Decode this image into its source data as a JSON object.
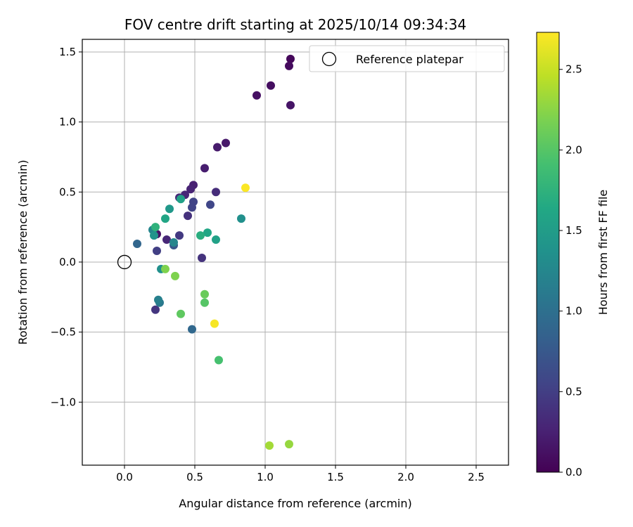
{
  "chart_data": {
    "type": "scatter",
    "title": "FOV centre drift starting at 2025/10/14 09:34:34",
    "xlabel": "Angular distance from reference (arcmin)",
    "ylabel": "Rotation from reference (arcmin)",
    "colorbar_label": "Hours from first FF file",
    "xlim": [
      -0.3,
      2.73
    ],
    "ylim": [
      -1.45,
      1.59
    ],
    "clim": [
      0.0,
      2.73
    ],
    "xticks": [
      0.0,
      0.5,
      1.0,
      1.5,
      2.0,
      2.5
    ],
    "xtick_labels": [
      "0.0",
      "0.5",
      "1.0",
      "1.5",
      "2.0",
      "2.5"
    ],
    "yticks": [
      -1.0,
      -0.5,
      0.0,
      0.5,
      1.0,
      1.5
    ],
    "ytick_labels": [
      "−1.0",
      "−0.5",
      "0.0",
      "0.5",
      "1.0",
      "1.5"
    ],
    "cticks": [
      0.0,
      0.5,
      1.0,
      1.5,
      2.0,
      2.5
    ],
    "ctick_labels": [
      "0.0",
      "0.5",
      "1.0",
      "1.5",
      "2.0",
      "2.5"
    ],
    "grid": true,
    "legend": {
      "position": "top-right",
      "entries": [
        "Reference platepar"
      ]
    },
    "reference_point": {
      "x": 0.0,
      "y": 0.0,
      "label": "Reference platepar"
    },
    "points": [
      {
        "x": 1.18,
        "y": 1.45,
        "t": 0.05
      },
      {
        "x": 1.17,
        "y": 1.4,
        "t": 0.08
      },
      {
        "x": 1.04,
        "y": 1.26,
        "t": 0.1
      },
      {
        "x": 0.94,
        "y": 1.19,
        "t": 0.12
      },
      {
        "x": 1.18,
        "y": 1.12,
        "t": 0.15
      },
      {
        "x": 0.72,
        "y": 0.85,
        "t": 0.18
      },
      {
        "x": 0.66,
        "y": 0.82,
        "t": 0.2
      },
      {
        "x": 0.57,
        "y": 0.67,
        "t": 0.22
      },
      {
        "x": 0.49,
        "y": 0.55,
        "t": 0.25
      },
      {
        "x": 0.47,
        "y": 0.52,
        "t": 0.27
      },
      {
        "x": 0.43,
        "y": 0.48,
        "t": 0.3
      },
      {
        "x": 0.39,
        "y": 0.46,
        "t": 0.32
      },
      {
        "x": 0.65,
        "y": 0.5,
        "t": 0.35
      },
      {
        "x": 0.45,
        "y": 0.33,
        "t": 0.38
      },
      {
        "x": 0.55,
        "y": 0.03,
        "t": 0.4
      },
      {
        "x": 0.22,
        "y": -0.34,
        "t": 0.42
      },
      {
        "x": 0.23,
        "y": 0.2,
        "t": 0.15
      },
      {
        "x": 0.3,
        "y": 0.16,
        "t": 0.3
      },
      {
        "x": 0.39,
        "y": 0.19,
        "t": 0.45
      },
      {
        "x": 0.23,
        "y": 0.08,
        "t": 0.5
      },
      {
        "x": 0.49,
        "y": 0.43,
        "t": 0.55
      },
      {
        "x": 0.48,
        "y": 0.39,
        "t": 0.55
      },
      {
        "x": 0.61,
        "y": 0.41,
        "t": 0.58
      },
      {
        "x": 0.35,
        "y": 0.12,
        "t": 0.75
      },
      {
        "x": 0.09,
        "y": 0.13,
        "t": 0.9
      },
      {
        "x": 0.48,
        "y": -0.48,
        "t": 0.92
      },
      {
        "x": 0.25,
        "y": -0.29,
        "t": 1.1
      },
      {
        "x": 0.24,
        "y": -0.27,
        "t": 1.18
      },
      {
        "x": 0.2,
        "y": 0.23,
        "t": 1.25
      },
      {
        "x": 0.35,
        "y": 0.14,
        "t": 1.25
      },
      {
        "x": 0.26,
        "y": -0.05,
        "t": 1.35
      },
      {
        "x": 0.83,
        "y": 0.31,
        "t": 1.35
      },
      {
        "x": 0.21,
        "y": 0.19,
        "t": 1.4
      },
      {
        "x": 0.32,
        "y": 0.38,
        "t": 1.45
      },
      {
        "x": 0.4,
        "y": 0.45,
        "t": 1.55
      },
      {
        "x": 0.65,
        "y": 0.16,
        "t": 1.55
      },
      {
        "x": 0.29,
        "y": 0.31,
        "t": 1.6
      },
      {
        "x": 0.59,
        "y": 0.21,
        "t": 1.62
      },
      {
        "x": 0.54,
        "y": 0.19,
        "t": 1.7
      },
      {
        "x": 0.22,
        "y": 0.25,
        "t": 1.75
      },
      {
        "x": 0.67,
        "y": -0.7,
        "t": 1.92
      },
      {
        "x": 0.57,
        "y": -0.29,
        "t": 2.0
      },
      {
        "x": 0.4,
        "y": -0.37,
        "t": 2.05
      },
      {
        "x": 0.57,
        "y": -0.23,
        "t": 2.1
      },
      {
        "x": 0.29,
        "y": -0.05,
        "t": 2.2
      },
      {
        "x": 0.36,
        "y": -0.1,
        "t": 2.2
      },
      {
        "x": 1.17,
        "y": -1.3,
        "t": 2.3
      },
      {
        "x": 1.03,
        "y": -1.31,
        "t": 2.35
      },
      {
        "x": 0.64,
        "y": -0.44,
        "t": 2.7
      },
      {
        "x": 0.86,
        "y": 0.53,
        "t": 2.72
      }
    ]
  }
}
